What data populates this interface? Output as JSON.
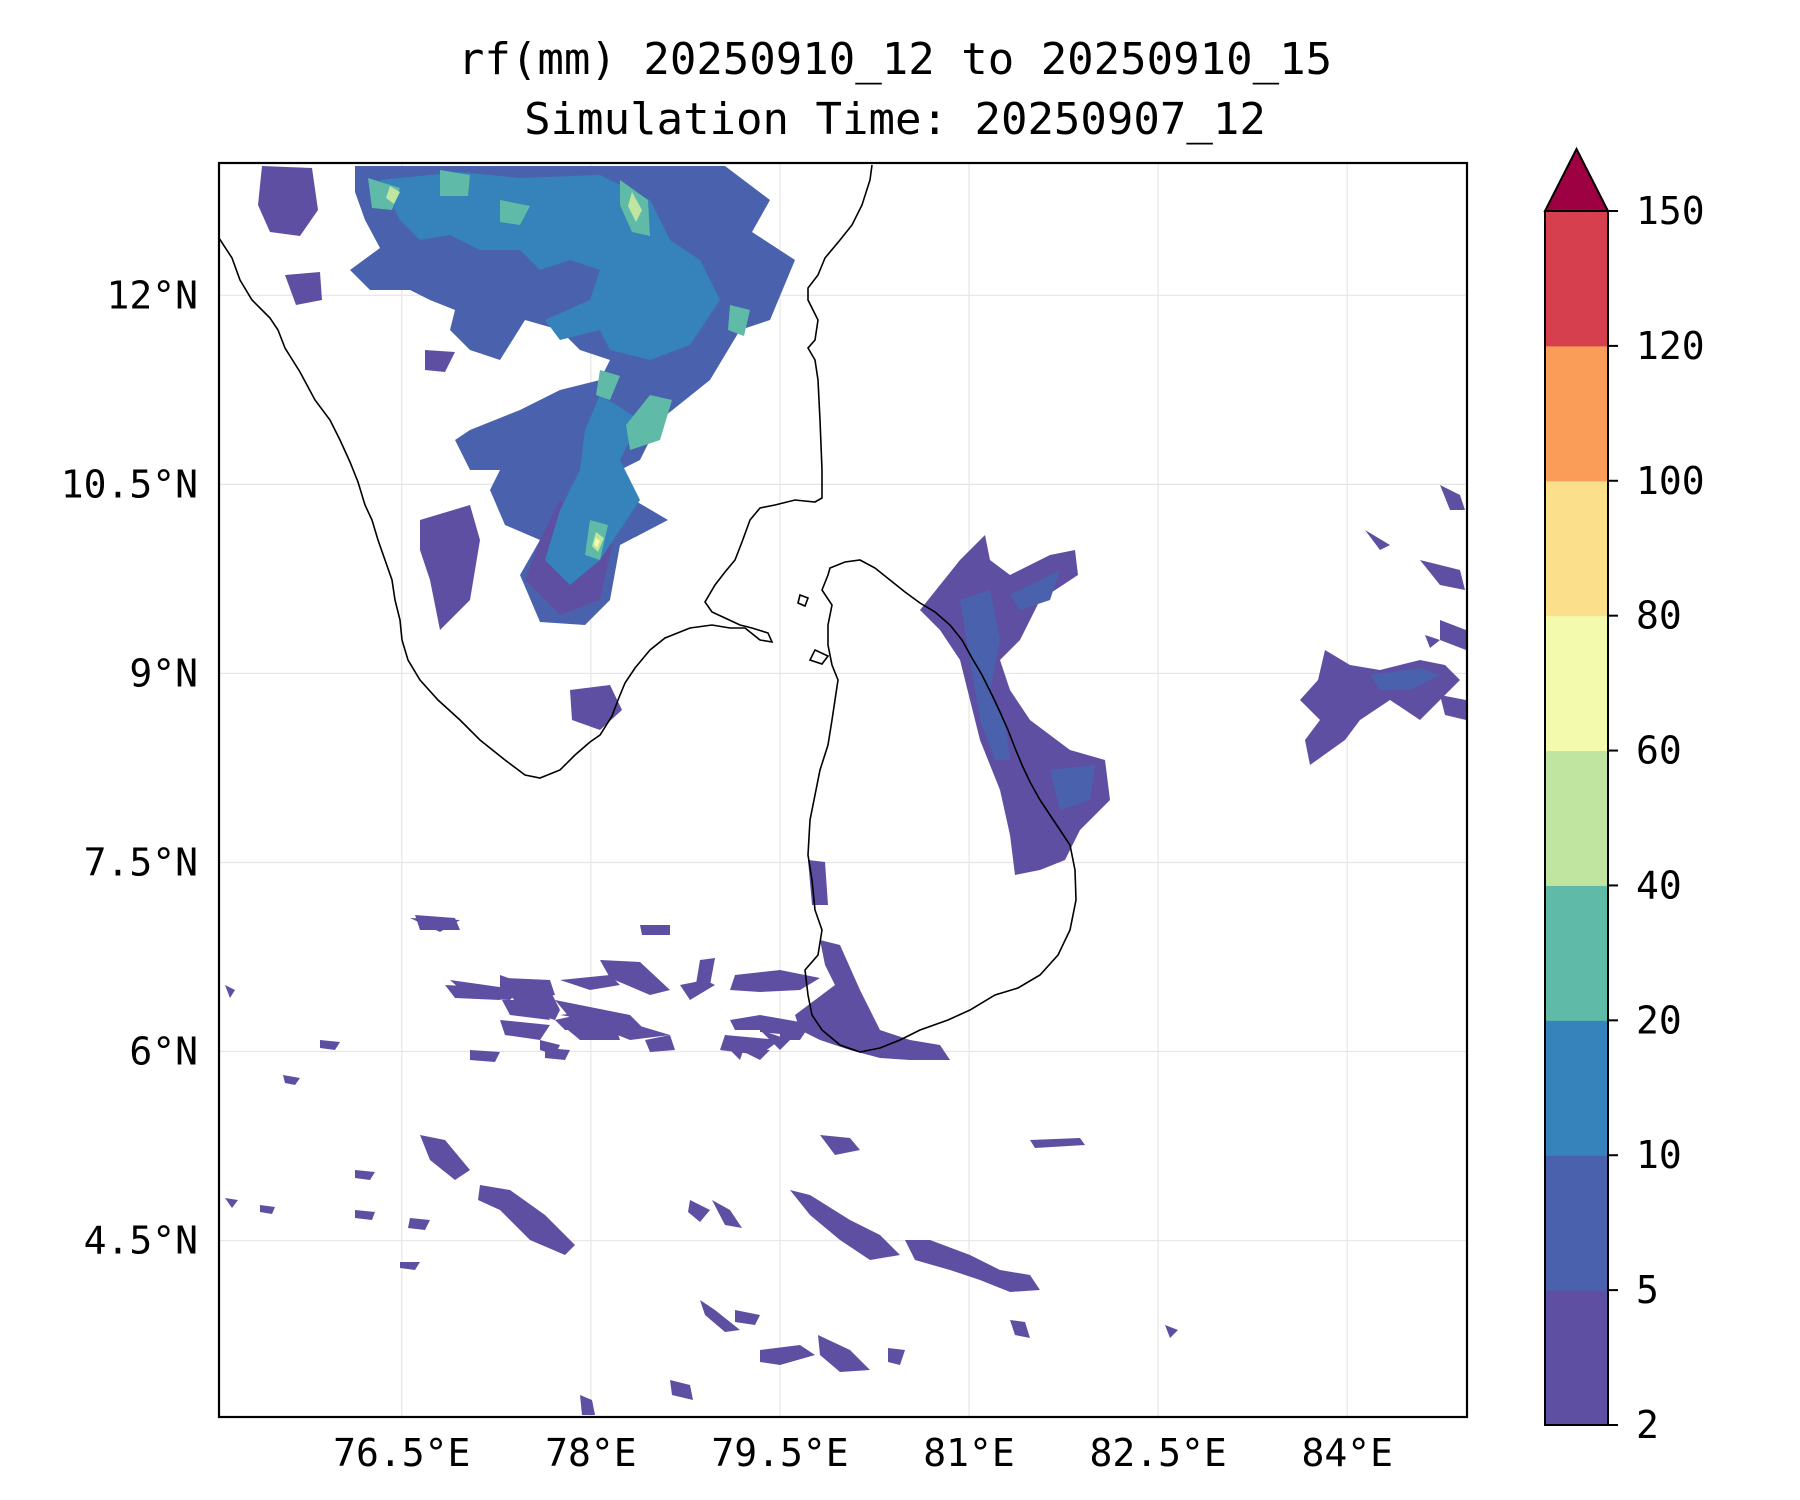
{
  "title_line1": "rf(mm) 20250910_12 to 20250910_15",
  "title_line2": "Simulation Time: 20250907_12",
  "map": {
    "lon_range": [
      75.05,
      84.95
    ],
    "lat_range": [
      3.1,
      13.05
    ],
    "lon_ticks": [
      {
        "value": 76.5,
        "label": "76.5°E"
      },
      {
        "value": 78.0,
        "label": "78°E"
      },
      {
        "value": 79.5,
        "label": "79.5°E"
      },
      {
        "value": 81.0,
        "label": "81°E"
      },
      {
        "value": 82.5,
        "label": "82.5°E"
      },
      {
        "value": 84.0,
        "label": "84°E"
      }
    ],
    "lat_ticks": [
      {
        "value": 12.0,
        "label": "12°N"
      },
      {
        "value": 10.5,
        "label": "10.5°N"
      },
      {
        "value": 9.0,
        "label": "9°N"
      },
      {
        "value": 7.5,
        "label": "7.5°N"
      },
      {
        "value": 6.0,
        "label": "6°N"
      },
      {
        "value": 4.5,
        "label": "4.5°N"
      }
    ],
    "grid": true
  },
  "colorbar": {
    "labels": [
      "2",
      "5",
      "10",
      "20",
      "40",
      "60",
      "80",
      "100",
      "120",
      "150"
    ],
    "colors": [
      "#5e4fa2",
      "#4a62ad",
      "#3682ba",
      "#5fbaa8",
      "#bfe5a0",
      "#f3faad",
      "#fbdf8a",
      "#f99d59",
      "#d6404e"
    ],
    "extend_color": "#9e0142",
    "extend": "max"
  },
  "colors": {
    "outline": "#000000",
    "grid": "#e6e6e6"
  }
}
